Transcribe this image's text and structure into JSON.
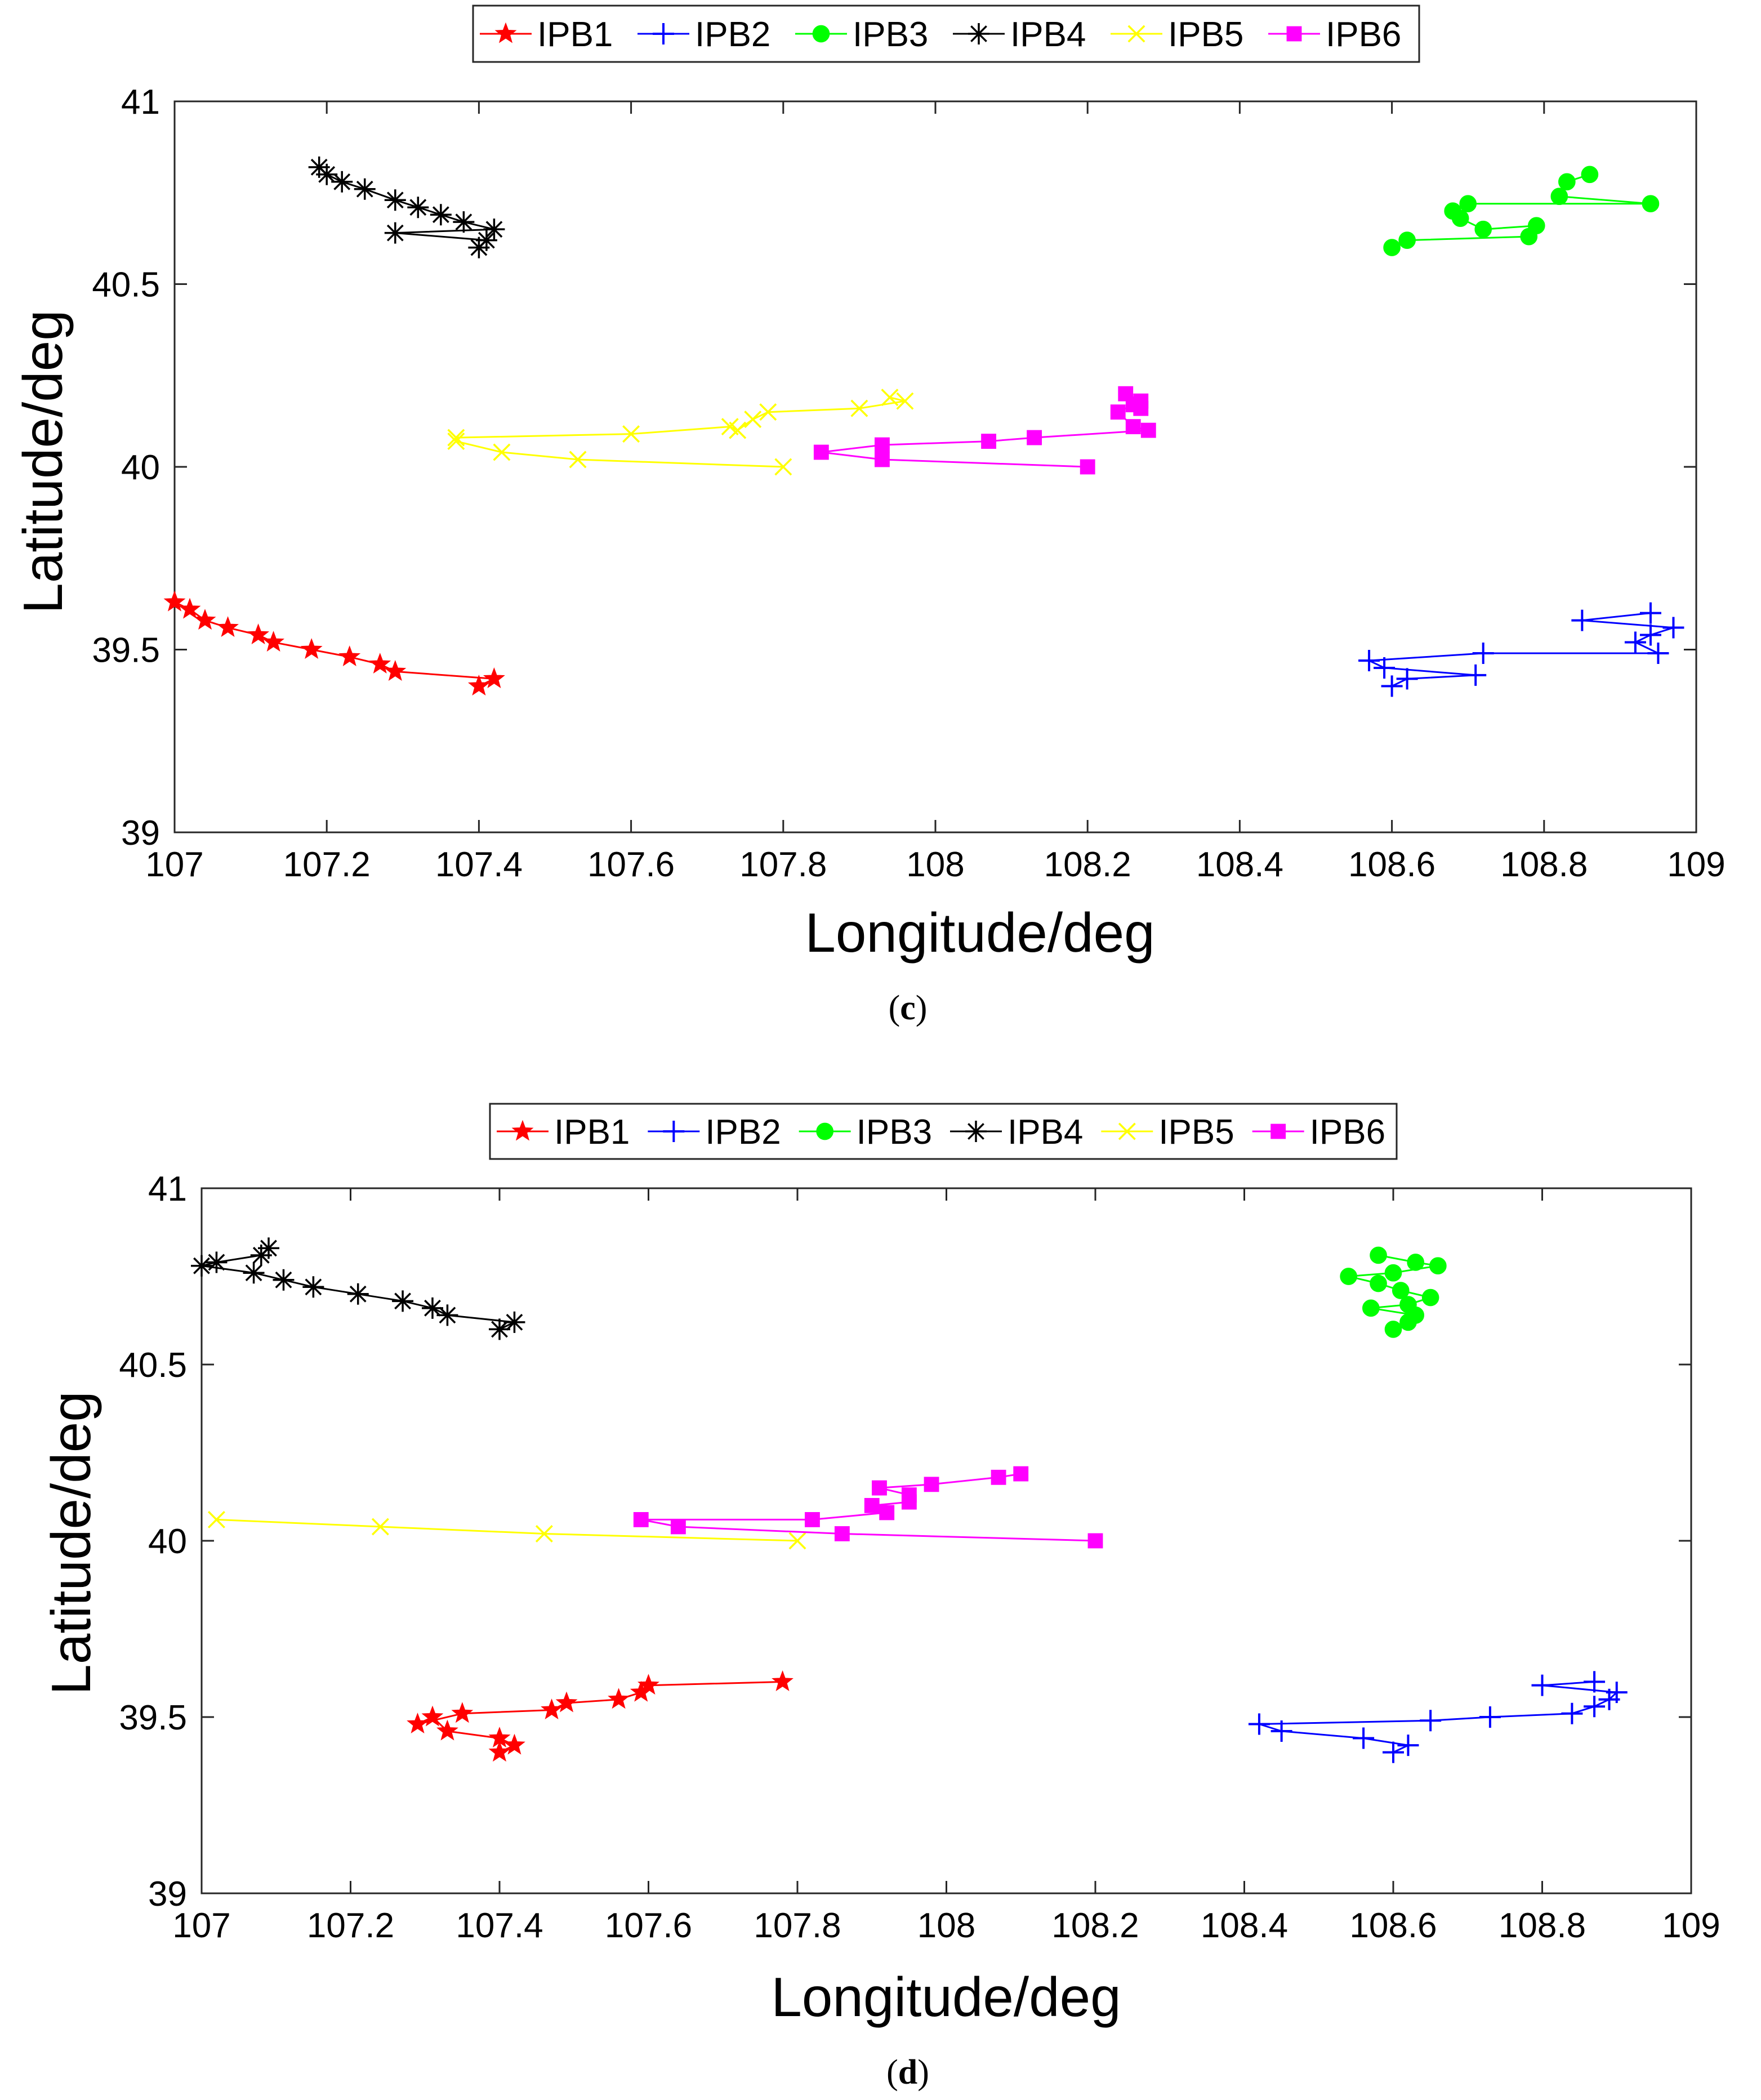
{
  "chart_data": [
    {
      "type": "line",
      "panel_label": "c",
      "caption_open": "(",
      "caption_close": ")",
      "xlabel": "Longitude/deg",
      "ylabel": "Latitude/deg",
      "xlim": [
        107,
        109
      ],
      "ylim": [
        39,
        41
      ],
      "xticks": [
        107,
        107.2,
        107.4,
        107.6,
        107.8,
        108,
        108.2,
        108.4,
        108.6,
        108.8,
        109
      ],
      "xtick_labels": [
        "107",
        "107.2",
        "107.4",
        "107.6",
        "107.8",
        "108",
        "108.2",
        "108.4",
        "108.6",
        "108.8",
        "109"
      ],
      "yticks": [
        39,
        39.5,
        40,
        40.5,
        41
      ],
      "ytick_labels": [
        "39",
        "39.5",
        "40",
        "40.5",
        "41"
      ],
      "grid": false,
      "legend_position": "top-center",
      "series": [
        {
          "name": "IPB1",
          "color": "#ff0000",
          "marker": "star",
          "x": [
            107.4,
            107.42,
            107.29,
            107.27,
            107.23,
            107.18,
            107.13,
            107.11,
            107.07,
            107.04,
            107.02,
            107.0
          ],
          "y": [
            39.4,
            39.42,
            39.44,
            39.46,
            39.48,
            39.5,
            39.52,
            39.54,
            39.56,
            39.58,
            39.61,
            39.63
          ]
        },
        {
          "name": "IPB2",
          "color": "#0000ff",
          "marker": "plus",
          "x": [
            108.6,
            108.62,
            108.71,
            108.59,
            108.57,
            108.72,
            108.95,
            108.92,
            108.94,
            108.97,
            108.85,
            108.94
          ],
          "y": [
            39.4,
            39.42,
            39.43,
            39.45,
            39.47,
            39.49,
            39.49,
            39.52,
            39.54,
            39.56,
            39.58,
            39.6
          ]
        },
        {
          "name": "IPB3",
          "color": "#00ff00",
          "marker": "circle",
          "x": [
            108.6,
            108.62,
            108.78,
            108.79,
            108.72,
            108.69,
            108.68,
            108.7,
            108.94,
            108.82,
            108.83,
            108.86
          ],
          "y": [
            40.6,
            40.62,
            40.63,
            40.66,
            40.65,
            40.68,
            40.7,
            40.72,
            40.72,
            40.74,
            40.78,
            40.8
          ]
        },
        {
          "name": "IPB4",
          "color": "#000000",
          "marker": "asterisk",
          "x": [
            107.4,
            107.41,
            107.29,
            107.42,
            107.38,
            107.35,
            107.32,
            107.29,
            107.25,
            107.22,
            107.2,
            107.19
          ],
          "y": [
            40.6,
            40.62,
            40.64,
            40.65,
            40.67,
            40.69,
            40.71,
            40.73,
            40.76,
            40.78,
            40.8,
            40.82
          ]
        },
        {
          "name": "IPB5",
          "color": "#ffff00",
          "marker": "x",
          "x": [
            107.8,
            107.53,
            107.43,
            107.37,
            107.37,
            107.6,
            107.73,
            107.74,
            107.76,
            107.78,
            107.9,
            107.96,
            107.94
          ],
          "y": [
            40.0,
            40.02,
            40.04,
            40.07,
            40.08,
            40.09,
            40.11,
            40.1,
            40.13,
            40.15,
            40.16,
            40.18,
            40.19
          ]
        },
        {
          "name": "IPB6",
          "color": "#ff00ff",
          "marker": "square",
          "x": [
            108.2,
            107.93,
            107.85,
            107.93,
            108.07,
            108.13,
            108.28,
            108.26,
            108.24,
            108.26,
            108.27,
            108.27,
            108.25
          ],
          "y": [
            40.0,
            40.02,
            40.04,
            40.06,
            40.07,
            40.08,
            40.1,
            40.11,
            40.15,
            40.17,
            40.16,
            40.18,
            40.2
          ]
        }
      ]
    },
    {
      "type": "line",
      "panel_label": "d",
      "caption_open": "(",
      "caption_close": ")",
      "xlabel": "Longitude/deg",
      "ylabel": "Latitude/deg",
      "xlim": [
        107,
        109
      ],
      "ylim": [
        39,
        41
      ],
      "xticks": [
        107,
        107.2,
        107.4,
        107.6,
        107.8,
        108,
        108.2,
        108.4,
        108.6,
        108.8,
        109
      ],
      "xtick_labels": [
        "107",
        "107.2",
        "107.4",
        "107.6",
        "107.8",
        "108",
        "108.2",
        "108.4",
        "108.6",
        "108.8",
        "109"
      ],
      "yticks": [
        39,
        39.5,
        40,
        40.5,
        41
      ],
      "ytick_labels": [
        "39",
        "39.5",
        "40",
        "40.5",
        "41"
      ],
      "grid": false,
      "legend_position": "top-center",
      "series": [
        {
          "name": "IPB1",
          "color": "#ff0000",
          "marker": "star",
          "x": [
            107.4,
            107.42,
            107.4,
            107.33,
            107.31,
            107.29,
            107.35,
            107.47,
            107.49,
            107.56,
            107.59,
            107.6,
            107.78
          ],
          "y": [
            39.4,
            39.42,
            39.44,
            39.46,
            39.5,
            39.48,
            39.51,
            39.52,
            39.54,
            39.55,
            39.57,
            39.59,
            39.6
          ]
        },
        {
          "name": "IPB2",
          "color": "#0000ff",
          "marker": "plus",
          "x": [
            108.6,
            108.62,
            108.56,
            108.45,
            108.42,
            108.65,
            108.73,
            108.84,
            108.87,
            108.89,
            108.9,
            108.8,
            108.87
          ],
          "y": [
            39.4,
            39.42,
            39.44,
            39.46,
            39.48,
            39.49,
            39.5,
            39.51,
            39.53,
            39.55,
            39.57,
            39.59,
            39.6
          ]
        },
        {
          "name": "IPB3",
          "color": "#00ff00",
          "marker": "circle",
          "x": [
            108.6,
            108.62,
            108.63,
            108.57,
            108.62,
            108.65,
            108.61,
            108.58,
            108.54,
            108.6,
            108.66,
            108.63,
            108.58
          ],
          "y": [
            40.6,
            40.62,
            40.64,
            40.66,
            40.67,
            40.69,
            40.71,
            40.73,
            40.75,
            40.76,
            40.78,
            40.79,
            40.81
          ]
        },
        {
          "name": "IPB4",
          "color": "#000000",
          "marker": "asterisk",
          "x": [
            107.4,
            107.42,
            107.33,
            107.31,
            107.27,
            107.21,
            107.15,
            107.11,
            107.07,
            107.0,
            107.02,
            107.08,
            107.09
          ],
          "y": [
            40.6,
            40.62,
            40.64,
            40.66,
            40.68,
            40.7,
            40.72,
            40.74,
            40.76,
            40.78,
            40.79,
            40.81,
            40.83
          ]
        },
        {
          "name": "IPB5",
          "color": "#ffff00",
          "marker": "x",
          "x": [
            107.8,
            107.46,
            107.24,
            107.02
          ],
          "y": [
            40.0,
            40.02,
            40.04,
            40.06
          ]
        },
        {
          "name": "IPB6",
          "color": "#ff00ff",
          "marker": "square",
          "x": [
            108.2,
            107.86,
            107.64,
            107.59,
            107.82,
            107.92,
            107.9,
            107.95,
            107.95,
            107.91,
            107.98,
            108.07,
            108.1
          ],
          "y": [
            40.0,
            40.02,
            40.04,
            40.06,
            40.06,
            40.08,
            40.1,
            40.11,
            40.13,
            40.15,
            40.16,
            40.18,
            40.19
          ]
        }
      ]
    }
  ]
}
